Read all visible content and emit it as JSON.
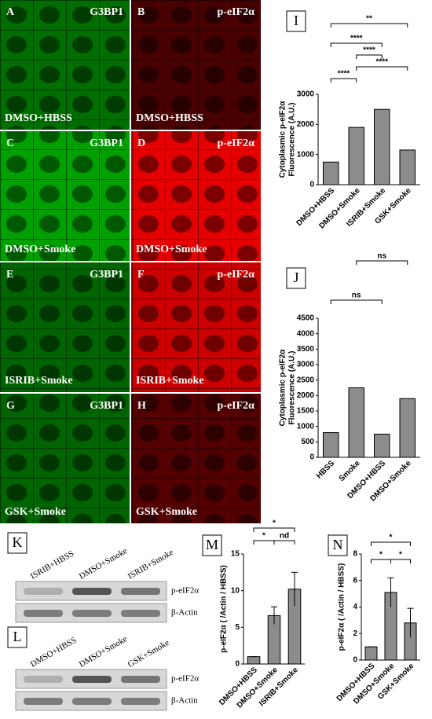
{
  "panels": [
    {
      "letter": "A",
      "marker": "G3BP1",
      "condition": "DMSO+HBSS",
      "channel": "green",
      "intensity": 0.55
    },
    {
      "letter": "B",
      "marker": "p-eIF2α",
      "condition": "DMSO+HBSS",
      "channel": "red",
      "intensity": 0.3
    },
    {
      "letter": "C",
      "marker": "G3BP1",
      "condition": "DMSO+Smoke",
      "channel": "green",
      "intensity": 0.8
    },
    {
      "letter": "D",
      "marker": "p-eIF2α",
      "condition": "DMSO+Smoke",
      "channel": "red",
      "intensity": 0.95
    },
    {
      "letter": "E",
      "marker": "G3BP1",
      "condition": "ISRIB+Smoke",
      "channel": "green",
      "intensity": 0.5
    },
    {
      "letter": "F",
      "marker": "p-eIF2α",
      "condition": "ISRIB+Smoke",
      "channel": "red",
      "intensity": 0.85
    },
    {
      "letter": "G",
      "marker": "G3BP1",
      "condition": "GSK+Smoke",
      "channel": "green",
      "intensity": 0.5
    },
    {
      "letter": "H",
      "marker": "p-eIF2α",
      "condition": "GSK+Smoke",
      "channel": "red",
      "intensity": 0.35
    }
  ],
  "blots": [
    {
      "letter": "K",
      "lanes": [
        "ISRIB+HBSS",
        "DMSO+Smoke",
        "ISRIB+Smoke"
      ],
      "bands": [
        "p-eIF2α",
        "β-Actin"
      ]
    },
    {
      "letter": "L",
      "lanes": [
        "DMSO+HBSS",
        "DMSO+Smoke",
        "GSK+Smoke"
      ],
      "bands": [
        "p-eIF2α",
        "β-Actin"
      ]
    }
  ],
  "chart_data": [
    {
      "type": "bar",
      "letter": "I",
      "ylabel": [
        "Cytoplasmic p-eIF2α",
        "Fluorescence (A.U.)"
      ],
      "categories": [
        "DMSO+HBSS",
        "DMSO+Smoke",
        "ISRIB+Smoke",
        "GSK+Smoke"
      ],
      "values": [
        750,
        1900,
        2500,
        1150
      ],
      "color": "#8c8c8c",
      "ylim": [
        0,
        3000
      ],
      "yticks": [
        0,
        1000,
        2000,
        3000
      ],
      "annotations": [
        {
          "text": "****",
          "between": [
            0,
            1
          ]
        },
        {
          "text": "****",
          "between": [
            1,
            3
          ]
        },
        {
          "text": "****",
          "between": [
            1,
            2
          ]
        },
        {
          "text": "****",
          "between": [
            0,
            2
          ]
        },
        {
          "text": "**",
          "between": [
            0,
            3
          ]
        }
      ]
    },
    {
      "type": "bar",
      "letter": "J",
      "ylabel": [
        "Cytoplasmic p-eIF2α",
        "Fluorescence (A.U.)"
      ],
      "categories": [
        "HBSS",
        "Smoke",
        "DMSO+HBSS",
        "DMSO+Smoke"
      ],
      "values": [
        800,
        2250,
        750,
        1900
      ],
      "color": "#8c8c8c",
      "ylim": [
        0,
        4500
      ],
      "yticks": [
        0,
        500,
        1000,
        1500,
        2000,
        2500,
        3000,
        3500,
        4000,
        4500
      ],
      "annotations": [
        {
          "text": "ns",
          "between": [
            0,
            2
          ]
        },
        {
          "text": "ns",
          "between": [
            1,
            3
          ]
        }
      ]
    },
    {
      "type": "bar",
      "letter": "M",
      "ylabel": [
        "p-eIF2α ( /Actin / HBSS)"
      ],
      "categories": [
        "DMSO+HBSS",
        "DMSO+Smoke",
        "ISRIB+Smoke"
      ],
      "values": [
        1,
        6.6,
        10.2
      ],
      "errors": [
        0,
        1.2,
        2.3
      ],
      "color": "#8c8c8c",
      "ylim": [
        0,
        15
      ],
      "yticks": [
        0,
        5,
        10,
        15
      ],
      "annotations": [
        {
          "text": "*",
          "between": [
            0,
            1
          ]
        },
        {
          "text": "nd",
          "between": [
            1,
            2
          ]
        },
        {
          "text": "*",
          "between": [
            0,
            2
          ]
        }
      ]
    },
    {
      "type": "bar",
      "letter": "N",
      "ylabel": [
        "p-eIF2α ( /Actin / HBSS)"
      ],
      "categories": [
        "DMSO+HBSS",
        "DMSO+Smoke",
        "GSK+Smoke"
      ],
      "values": [
        1,
        5.1,
        2.8
      ],
      "errors": [
        0,
        1.1,
        1.1
      ],
      "color": "#8c8c8c",
      "ylim": [
        0,
        8
      ],
      "yticks": [
        0,
        2,
        4,
        6,
        8
      ],
      "annotations": [
        {
          "text": "*",
          "between": [
            0,
            1
          ]
        },
        {
          "text": "*",
          "between": [
            1,
            2
          ]
        },
        {
          "text": "*",
          "between": [
            0,
            2
          ]
        }
      ]
    }
  ]
}
